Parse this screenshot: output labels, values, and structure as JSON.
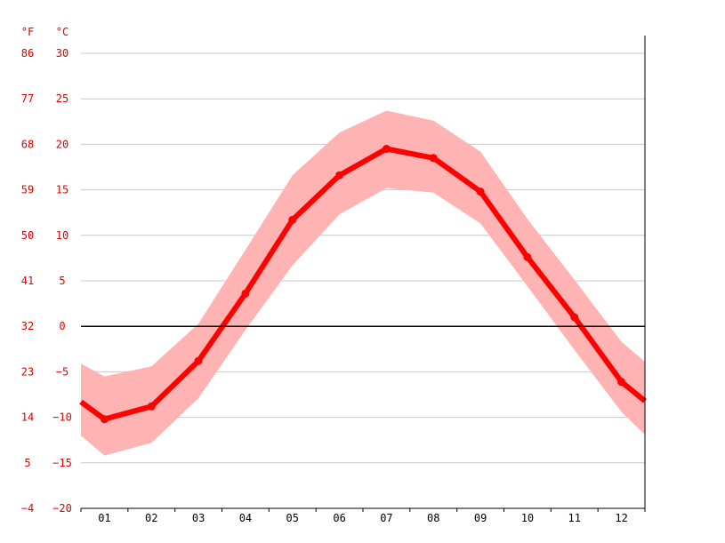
{
  "chart_data": {
    "type": "line",
    "unit_left": "°F",
    "unit_right": "°C",
    "categories": [
      "01",
      "02",
      "03",
      "04",
      "05",
      "06",
      "07",
      "08",
      "09",
      "10",
      "11",
      "12"
    ],
    "series": [
      {
        "values": [
          -10.2,
          -8.8,
          -3.8,
          3.6,
          11.7,
          16.6,
          19.5,
          18.5,
          14.8,
          7.6,
          1.0,
          -6.1
        ]
      }
    ],
    "band": {
      "high": [
        -5.5,
        -4.4,
        0.3,
        8.4,
        16.6,
        21.3,
        23.7,
        22.6,
        19.2,
        11.8,
        5.1,
        -1.7
      ],
      "low": [
        -14.2,
        -12.8,
        -7.9,
        -0.4,
        6.7,
        12.3,
        15.2,
        14.7,
        11.3,
        4.4,
        -2.6,
        -9.4
      ]
    },
    "edge_values": {
      "left": {
        "value": -8.3,
        "high": -4.1,
        "low": -12.0
      },
      "right": {
        "value": -8.2,
        "high": -3.9,
        "low": -11.9
      }
    },
    "ylim": [
      -20,
      30
    ],
    "yticks_c": [
      "30",
      "25",
      "20",
      "15",
      "10",
      "5",
      "0",
      "−5",
      "−10",
      "−15",
      "−20"
    ],
    "yticks_f": [
      "86",
      "77",
      "68",
      "59",
      "50",
      "41",
      "32",
      "23",
      "14",
      "5",
      "−4"
    ],
    "colors": {
      "line": "#ff0000",
      "band": "#ffb3b3",
      "zero_line": "#000000",
      "axis_text": "#e00000"
    },
    "grid": true
  }
}
